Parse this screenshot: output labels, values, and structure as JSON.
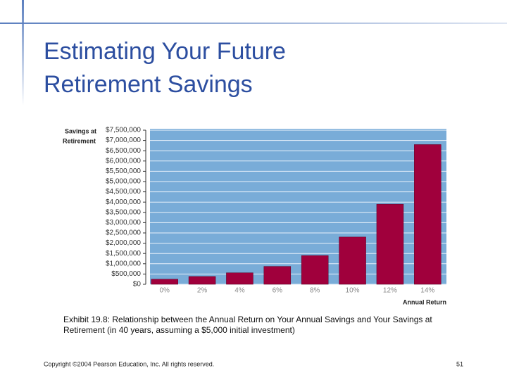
{
  "slide": {
    "title": [
      "Estimating Your Future",
      "Retirement Savings"
    ],
    "caption": [
      "Exhibit 19.8: Relationship between the Annual Return on Your Annual Savings and Your Savings at",
      "Retirement (in 40 years, assuming a $5,000 initial investment)"
    ],
    "footer": "Copyright ©2004 Pearson Education, Inc. All rights reserved.",
    "page_number": "51"
  },
  "chart_data": {
    "type": "bar",
    "y_label": [
      "Savings at",
      "Retirement"
    ],
    "x_label": "Annual Return",
    "categories": [
      "0%",
      "2%",
      "4%",
      "6%",
      "8%",
      "10%",
      "12%",
      "14%"
    ],
    "values": [
      250000,
      380000,
      560000,
      870000,
      1400000,
      2300000,
      3900000,
      6800000
    ],
    "color": "#a0003c",
    "background": "#79acd8",
    "grid": true,
    "ylim": [
      0,
      7500000
    ],
    "yticks": [
      {
        "value": 0,
        "label": "$0"
      },
      {
        "value": 500000,
        "label": "$500,000"
      },
      {
        "value": 1000000,
        "label": "$1,000,000"
      },
      {
        "value": 1500000,
        "label": "$1,500,000"
      },
      {
        "value": 2000000,
        "label": "$2,000,000"
      },
      {
        "value": 2500000,
        "label": "$2,500,000"
      },
      {
        "value": 3000000,
        "label": "$3,000,000"
      },
      {
        "value": 3500000,
        "label": "$3,500,000"
      },
      {
        "value": 4000000,
        "label": "$4,000,000"
      },
      {
        "value": 4500000,
        "label": "$4,500,000"
      },
      {
        "value": 5000000,
        "label": "$5,000,000"
      },
      {
        "value": 5500000,
        "label": "$5,500,000"
      },
      {
        "value": 6000000,
        "label": "$6,000,000"
      },
      {
        "value": 6500000,
        "label": "$6,500,000"
      },
      {
        "value": 7000000,
        "label": "$7,000,000"
      },
      {
        "value": 7500000,
        "label": "$7,500,000"
      }
    ]
  }
}
